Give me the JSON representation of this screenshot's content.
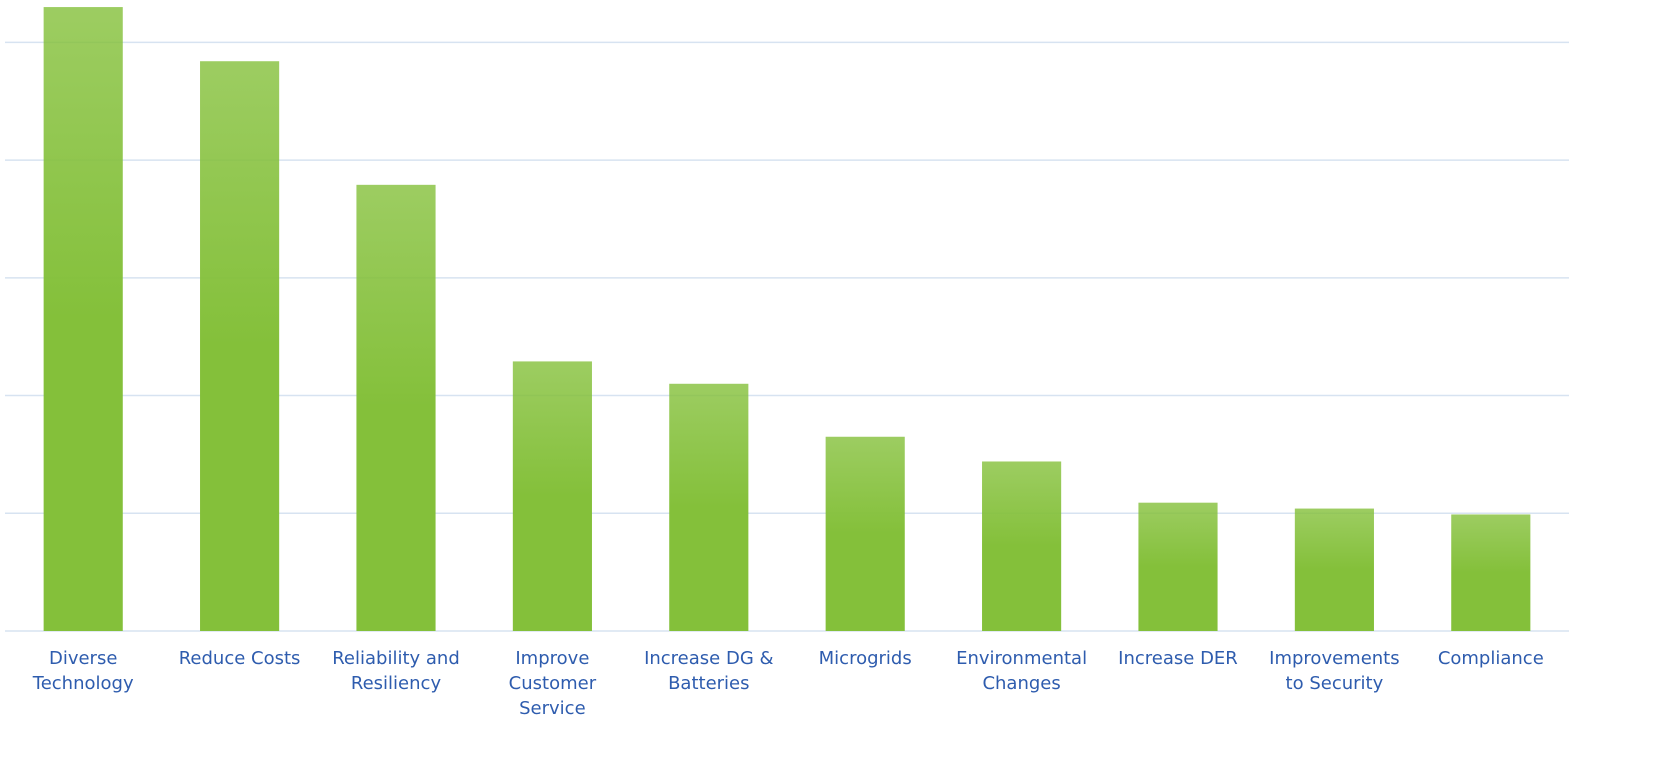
{
  "chart_data": {
    "type": "bar",
    "categories": [
      "Diverse Technology",
      "Reduce Costs",
      "Reliability and Resiliency",
      "Improve Customer Service",
      "Increase DG & Batteries",
      "Microgrids",
      "Environmental Changes",
      "Increase DER",
      "Improvements to Security",
      "Compliance"
    ],
    "values": [
      53.0,
      48.4,
      37.9,
      22.9,
      21.0,
      16.5,
      14.4,
      10.9,
      10.4,
      9.9
    ],
    "color": "#84c03a",
    "ylim": [
      0,
      53.6
    ],
    "yticks": [
      0,
      10,
      20,
      30,
      40,
      50
    ],
    "grid": true
  }
}
